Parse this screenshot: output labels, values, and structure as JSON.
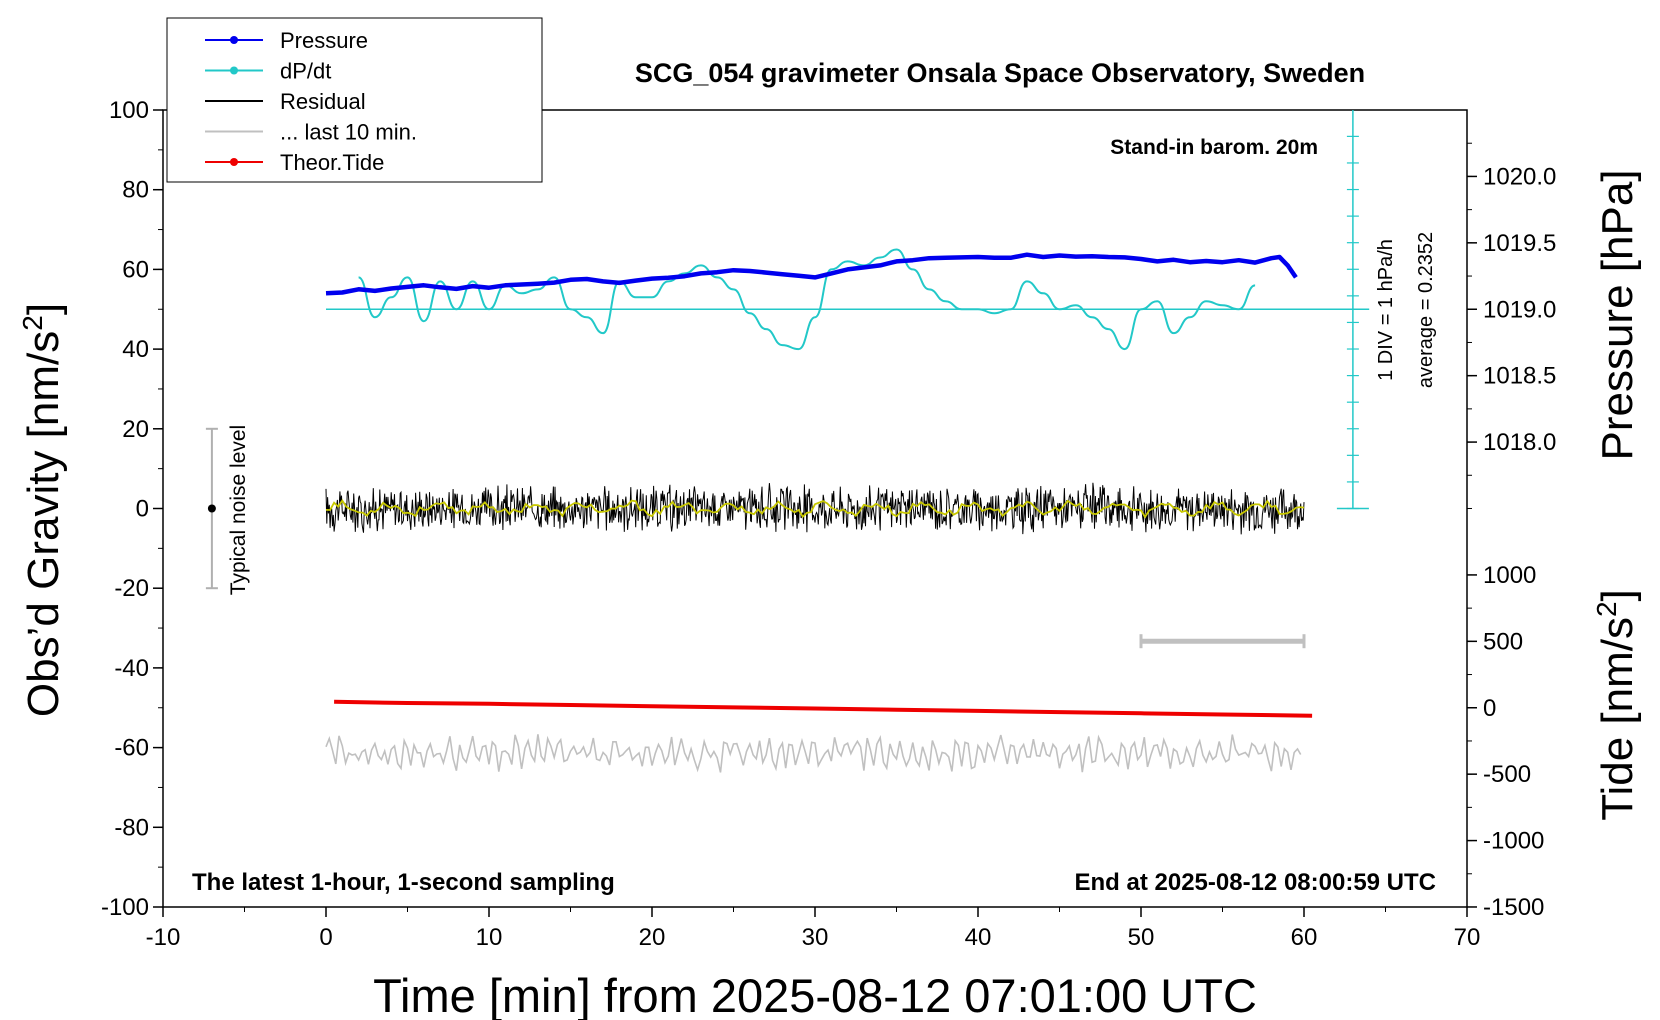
{
  "chart_data": {
    "type": "line",
    "title": "SCG_054 gravimeter Onsala Space Observatory, Sweden",
    "xlabel": "Time [min] from 2025-08-12 07:01:00 UTC",
    "ylabel_left": "Obs’d Gravity [nm/s",
    "ylabel_left_sup": "2",
    "ylabel_left_end": "]",
    "ylabel_right_pressure": "Pressure [hPa]",
    "ylabel_right_tide": "Tide [nm/s",
    "ylabel_right_tide_sup": "2",
    "ylabel_right_tide_end": "]",
    "xlim": [
      -10,
      70
    ],
    "ylim": [
      -100,
      100
    ],
    "x_ticks": [
      "-10",
      "0",
      "10",
      "20",
      "30",
      "40",
      "50",
      "60",
      "70"
    ],
    "x_tick_values": [
      -10,
      0,
      10,
      20,
      30,
      40,
      50,
      60,
      70
    ],
    "y_ticks": [
      "100",
      "80",
      "60",
      "40",
      "20",
      "0",
      "-20",
      "-40",
      "-60",
      "-80",
      "-100"
    ],
    "y_tick_values": [
      100,
      80,
      60,
      40,
      20,
      0,
      -20,
      -40,
      -60,
      -80,
      -100
    ],
    "pressure_axis": {
      "ticks": [
        "1020.0",
        "1019.5",
        "1019.0",
        "1018.5",
        "1018.0"
      ],
      "tick_values": [
        1020.0,
        1019.5,
        1019.0,
        1018.5,
        1018.0
      ],
      "gravity_at_1019": 50,
      "gravity_per_hpa": 33.33
    },
    "tide_axis": {
      "ticks": [
        "1000",
        "500",
        "0",
        "-500",
        "-1000",
        "-1500"
      ],
      "tick_values": [
        1000,
        500,
        0,
        -500,
        -1000,
        -1500
      ],
      "gravity_at_zero": -50,
      "gravity_per_unit": 0.03333
    },
    "legend": [
      {
        "name": "Pressure",
        "color": "#0000ee",
        "marker": true
      },
      {
        "name": "dP/dt",
        "color": "#22c8c8",
        "marker": true
      },
      {
        "name": "Residual",
        "color": "#000000",
        "marker": false
      },
      {
        "name": "... last 10 min.",
        "color": "#c0c0c0",
        "marker": false
      },
      {
        "name": "Theor.Tide",
        "color": "#ee0000",
        "marker": true
      }
    ],
    "annotations": {
      "barometer": "Stand-in barom. 20m",
      "bottom_left": "The latest 1-hour, 1-second sampling",
      "bottom_right": "End at 2025-08-12 08:00:59 UTC",
      "noise": "Typical noise level",
      "div_label": "1 DIV = 1 hPa/h",
      "average_label": "average = 0.2352"
    },
    "noise_bar": {
      "x": -7,
      "center": 0,
      "low": -20,
      "high": 20
    },
    "last10_bar": {
      "x_start": 50,
      "x_end": 60,
      "y": -33.3
    },
    "dpdt_scale": {
      "x": 63,
      "ymin": 0,
      "ymax": 100,
      "zero_line": 50,
      "div_step": 6.67
    },
    "series": [
      {
        "name": "Pressure",
        "color": "#0000ee",
        "x": [
          0,
          1,
          2,
          3,
          4,
          5,
          6,
          7,
          8,
          9,
          10,
          11,
          12,
          13,
          14,
          15,
          16,
          17,
          18,
          19,
          20,
          21,
          22,
          23,
          24,
          25,
          26,
          27,
          28,
          29,
          30,
          31,
          32,
          33,
          34,
          35,
          36,
          37,
          38,
          39,
          40,
          41,
          42,
          43,
          44,
          45,
          46,
          47,
          48,
          49,
          50,
          51,
          52,
          53,
          54,
          55,
          56,
          57,
          58,
          58.5,
          59,
          59.5
        ],
        "y": [
          54,
          54.2,
          55,
          54.6,
          55.2,
          55.6,
          56,
          55.5,
          55.1,
          55.8,
          55.4,
          56,
          56.2,
          56.4,
          56.7,
          57.4,
          57.6,
          57,
          56.6,
          57.2,
          57.7,
          57.9,
          58.3,
          59,
          59.3,
          59.8,
          59.6,
          59.2,
          58.8,
          58.4,
          58,
          59,
          60,
          60.5,
          61,
          62,
          62.3,
          62.8,
          62.9,
          63,
          63.1,
          62.9,
          62.9,
          63.7,
          63.1,
          63.5,
          63.2,
          63.3,
          63.1,
          63,
          62.6,
          62,
          62.4,
          61.8,
          62.1,
          61.8,
          62.3,
          61.7,
          62.8,
          63.1,
          61,
          58
        ]
      },
      {
        "name": "dP/dt",
        "color": "#22c8c8",
        "x": [
          2,
          3,
          4,
          5,
          6,
          7,
          8,
          9,
          10,
          11,
          12,
          13,
          14,
          15,
          16,
          17,
          18,
          19,
          20,
          21,
          22,
          23,
          24,
          25,
          26,
          27,
          28,
          29,
          30,
          31,
          32,
          33,
          34,
          35,
          36,
          37,
          38,
          39,
          40,
          41,
          42,
          43,
          44,
          45,
          46,
          47,
          48,
          49,
          50,
          51,
          52,
          53,
          54,
          55,
          56,
          57
        ],
        "y": [
          58,
          48,
          53,
          58,
          47,
          57,
          50,
          57,
          50,
          56,
          54,
          55,
          58,
          50,
          48,
          44,
          57,
          53,
          53,
          57,
          59,
          61,
          58,
          55,
          49,
          45,
          41,
          40,
          48,
          60,
          62,
          61,
          63,
          65,
          60,
          55,
          52,
          50,
          50,
          49,
          50,
          57,
          54,
          50,
          51,
          48,
          45,
          40,
          50,
          52,
          44,
          48,
          52,
          51,
          50,
          56
        ]
      },
      {
        "name": "Residual",
        "color": "#000000",
        "x_start": 0,
        "x_end": 60,
        "amplitude": 6
      },
      {
        "name": "Residual (smoothed)",
        "color": "#c8c800",
        "x_start": 0,
        "x_end": 60,
        "amplitude": 2
      },
      {
        "name": "... last 10 min.",
        "color": "#c0c0c0",
        "x_start": 0,
        "x_end": 60,
        "baseline": -61.5,
        "amplitude": 5
      },
      {
        "name": "Theor.Tide",
        "color": "#ee0000",
        "x": [
          0.5,
          5,
          10,
          15,
          20,
          25,
          30,
          35,
          40,
          45,
          50,
          55,
          60.5
        ],
        "y": [
          -48.5,
          -48.8,
          -49,
          -49.3,
          -49.6,
          -49.9,
          -50.2,
          -50.5,
          -50.8,
          -51.1,
          -51.4,
          -51.7,
          -52
        ]
      }
    ]
  }
}
